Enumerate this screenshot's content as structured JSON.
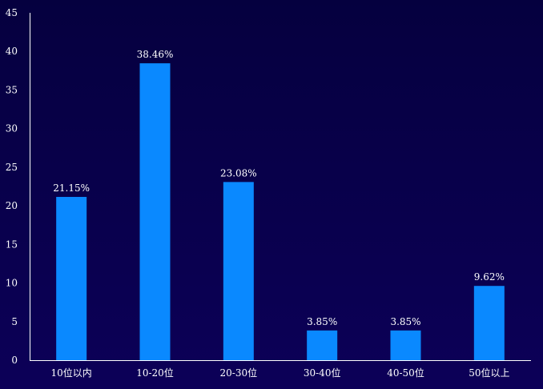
{
  "chart_data": {
    "type": "bar",
    "categories": [
      "10位以内",
      "10-20位",
      "20-30位",
      "30-40位",
      "40-50位",
      "50位以上"
    ],
    "values": [
      21.15,
      38.46,
      23.08,
      3.85,
      3.85,
      9.62
    ],
    "data_labels": [
      "21.15%",
      "38.46%",
      "23.08%",
      "3.85%",
      "3.85%",
      "9.62%"
    ],
    "title": "",
    "xlabel": "",
    "ylabel": "",
    "ylim": [
      0,
      45
    ],
    "yticks": [
      0,
      5,
      10,
      15,
      20,
      25,
      30,
      35,
      40,
      45
    ],
    "grid": false,
    "legend": "none",
    "colors": {
      "bar": "#0a89ff",
      "text": "#ffffff",
      "axis": "#ffffff"
    }
  }
}
